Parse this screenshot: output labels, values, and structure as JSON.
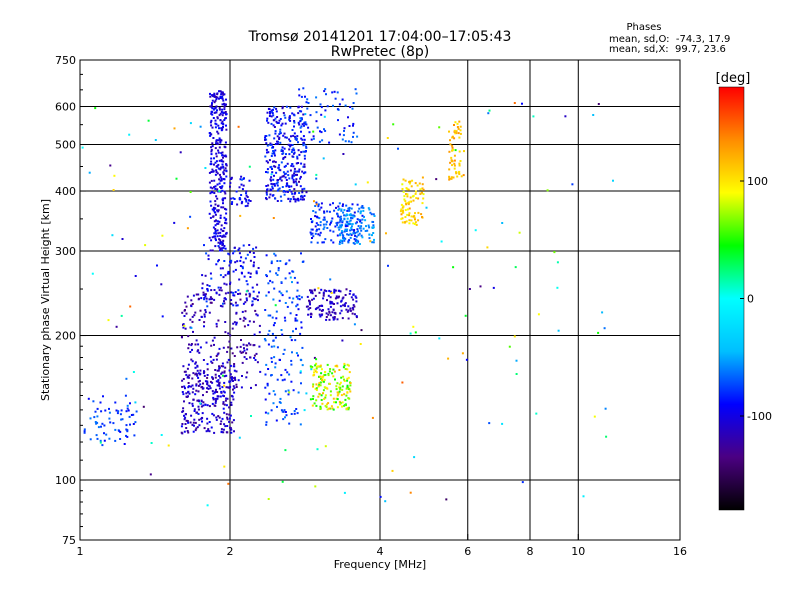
{
  "chart_data": {
    "type": "scatter",
    "title": "Tromsø 20141201 17:04:00–17:05:43",
    "subtitle": "RwPretec (8p)",
    "xlabel": "Frequency [MHz]",
    "ylabel": "Stationary phase Virtual Height [km]",
    "x_scale": "log2",
    "y_scale": "log",
    "xlim": [
      1,
      16
    ],
    "ylim": [
      75,
      750
    ],
    "x_ticks": [
      1,
      2,
      4,
      6,
      8,
      10,
      16
    ],
    "x_tick_labels": [
      "1",
      "2",
      "4",
      "6",
      "8",
      "10",
      "16"
    ],
    "y_ticks": [
      75,
      100,
      200,
      300,
      400,
      500,
      600,
      750
    ],
    "y_tick_labels": [
      "75",
      "100",
      "200",
      "300",
      "400",
      "500",
      "600",
      "750"
    ],
    "grid": true,
    "phase_box": {
      "heading": "Phases",
      "line_o": "mean, sd,O:  -74.3, 17.9",
      "line_x": "mean, sd,X:  99.7, 23.6"
    },
    "colorbar": {
      "label": "[deg]",
      "range": [
        -180,
        180
      ],
      "ticks": [
        100,
        0,
        -100
      ],
      "tick_labels": [
        "100",
        "0",
        "-100"
      ],
      "colors": [
        "#000000",
        "#4b0082",
        "#0000ff",
        "#00bfff",
        "#00ffff",
        "#00ff00",
        "#ffff00",
        "#ff8c00",
        "#ff0000"
      ]
    },
    "clusters": [
      {
        "x": [
          1.02,
          1.3
        ],
        "y": [
          118,
          150
        ],
        "phase": [
          -95,
          -60
        ],
        "n": 70
      },
      {
        "x": [
          1.6,
          2.05
        ],
        "y": [
          125,
          175
        ],
        "phase": [
          -130,
          -90
        ],
        "n": 260
      },
      {
        "x": [
          1.6,
          2.3
        ],
        "y": [
          155,
          250
        ],
        "phase": [
          -135,
          -95
        ],
        "n": 220
      },
      {
        "x": [
          1.75,
          2.3
        ],
        "y": [
          230,
          310
        ],
        "phase": [
          -115,
          -70
        ],
        "n": 120
      },
      {
        "x": [
          1.82,
          1.97
        ],
        "y": [
          300,
          650
        ],
        "phase": [
          -120,
          -85
        ],
        "n": 330
      },
      {
        "x": [
          2.0,
          2.2
        ],
        "y": [
          370,
          430
        ],
        "phase": [
          -110,
          -80
        ],
        "n": 40
      },
      {
        "x": [
          2.35,
          2.85
        ],
        "y": [
          380,
          600
        ],
        "phase": [
          -115,
          -70
        ],
        "n": 330
      },
      {
        "x": [
          2.35,
          2.8
        ],
        "y": [
          130,
          300
        ],
        "phase": [
          -95,
          -55
        ],
        "n": 160
      },
      {
        "x": [
          2.75,
          3.6
        ],
        "y": [
          500,
          660
        ],
        "phase": [
          -100,
          -60
        ],
        "n": 70
      },
      {
        "x": [
          2.9,
          3.7
        ],
        "y": [
          310,
          380
        ],
        "phase": [
          -100,
          -60
        ],
        "n": 140
      },
      {
        "x": [
          3.3,
          3.9
        ],
        "y": [
          310,
          370
        ],
        "phase": [
          -70,
          -45
        ],
        "n": 110
      },
      {
        "x": [
          2.85,
          3.6
        ],
        "y": [
          215,
          250
        ],
        "phase": [
          -130,
          -95
        ],
        "n": 130
      },
      {
        "x": [
          2.9,
          3.5
        ],
        "y": [
          140,
          175
        ],
        "phase": [
          40,
          120
        ],
        "n": 170
      },
      {
        "x": [
          4.4,
          4.9
        ],
        "y": [
          340,
          430
        ],
        "phase": [
          85,
          130
        ],
        "n": 90
      },
      {
        "x": [
          5.5,
          5.9
        ],
        "y": [
          420,
          560
        ],
        "phase": [
          95,
          140
        ],
        "n": 60
      },
      {
        "x": [
          1.0,
          12.0
        ],
        "y": [
          88,
          650
        ],
        "phase": [
          -150,
          150
        ],
        "n": 170
      }
    ]
  }
}
